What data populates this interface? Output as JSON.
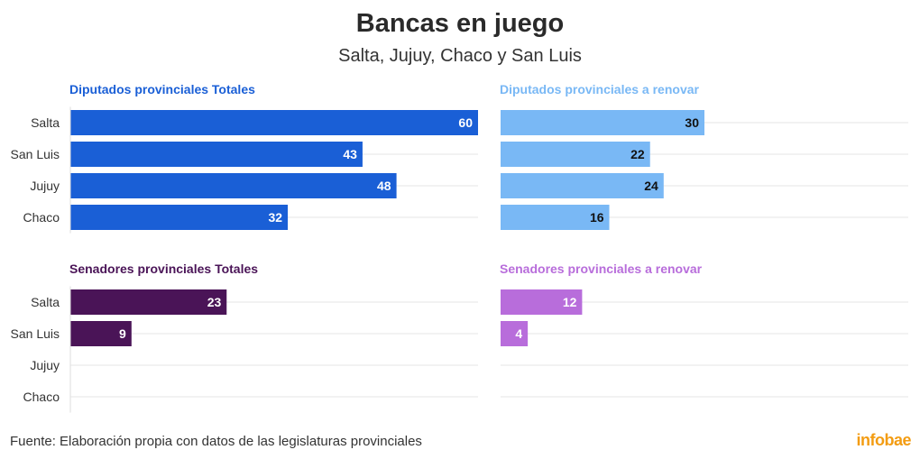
{
  "header": {
    "title": "Bancas en juego",
    "subtitle": "Salta, Jujuy, Chaco y San Luis"
  },
  "footer": {
    "source": "Fuente: Elaboración propia con datos de las legislaturas provinciales",
    "logo": "infobae"
  },
  "chart_data": [
    {
      "type": "bar",
      "orientation": "horizontal",
      "title": "Diputados provinciales Totales",
      "categories": [
        "Salta",
        "San Luis",
        "Jujuy",
        "Chaco"
      ],
      "values": [
        60,
        43,
        48,
        32
      ],
      "xlim": [
        0,
        60
      ],
      "color": "#1a5fd6",
      "title_color": "#1a5fd6",
      "label_color": "#ffffff"
    },
    {
      "type": "bar",
      "orientation": "horizontal",
      "title": "Diputados provinciales a renovar",
      "categories": [
        "Salta",
        "San Luis",
        "Jujuy",
        "Chaco"
      ],
      "values": [
        30,
        22,
        24,
        16
      ],
      "xlim": [
        0,
        60
      ],
      "color": "#79b8f5",
      "title_color": "#79b8f5",
      "label_color": "#111111"
    },
    {
      "type": "bar",
      "orientation": "horizontal",
      "title": "Senadores provinciales Totales",
      "categories": [
        "Salta",
        "San Luis",
        "Jujuy",
        "Chaco"
      ],
      "values": [
        23,
        9,
        null,
        null
      ],
      "xlim": [
        0,
        60
      ],
      "color": "#4a1457",
      "title_color": "#4a1457",
      "label_color": "#ffffff"
    },
    {
      "type": "bar",
      "orientation": "horizontal",
      "title": "Senadores provinciales a renovar",
      "categories": [
        "Salta",
        "San Luis",
        "Jujuy",
        "Chaco"
      ],
      "values": [
        12,
        4,
        null,
        null
      ],
      "xlim": [
        0,
        60
      ],
      "color": "#b86ddb",
      "title_color": "#b86ddb",
      "label_color": "#ffffff"
    }
  ]
}
